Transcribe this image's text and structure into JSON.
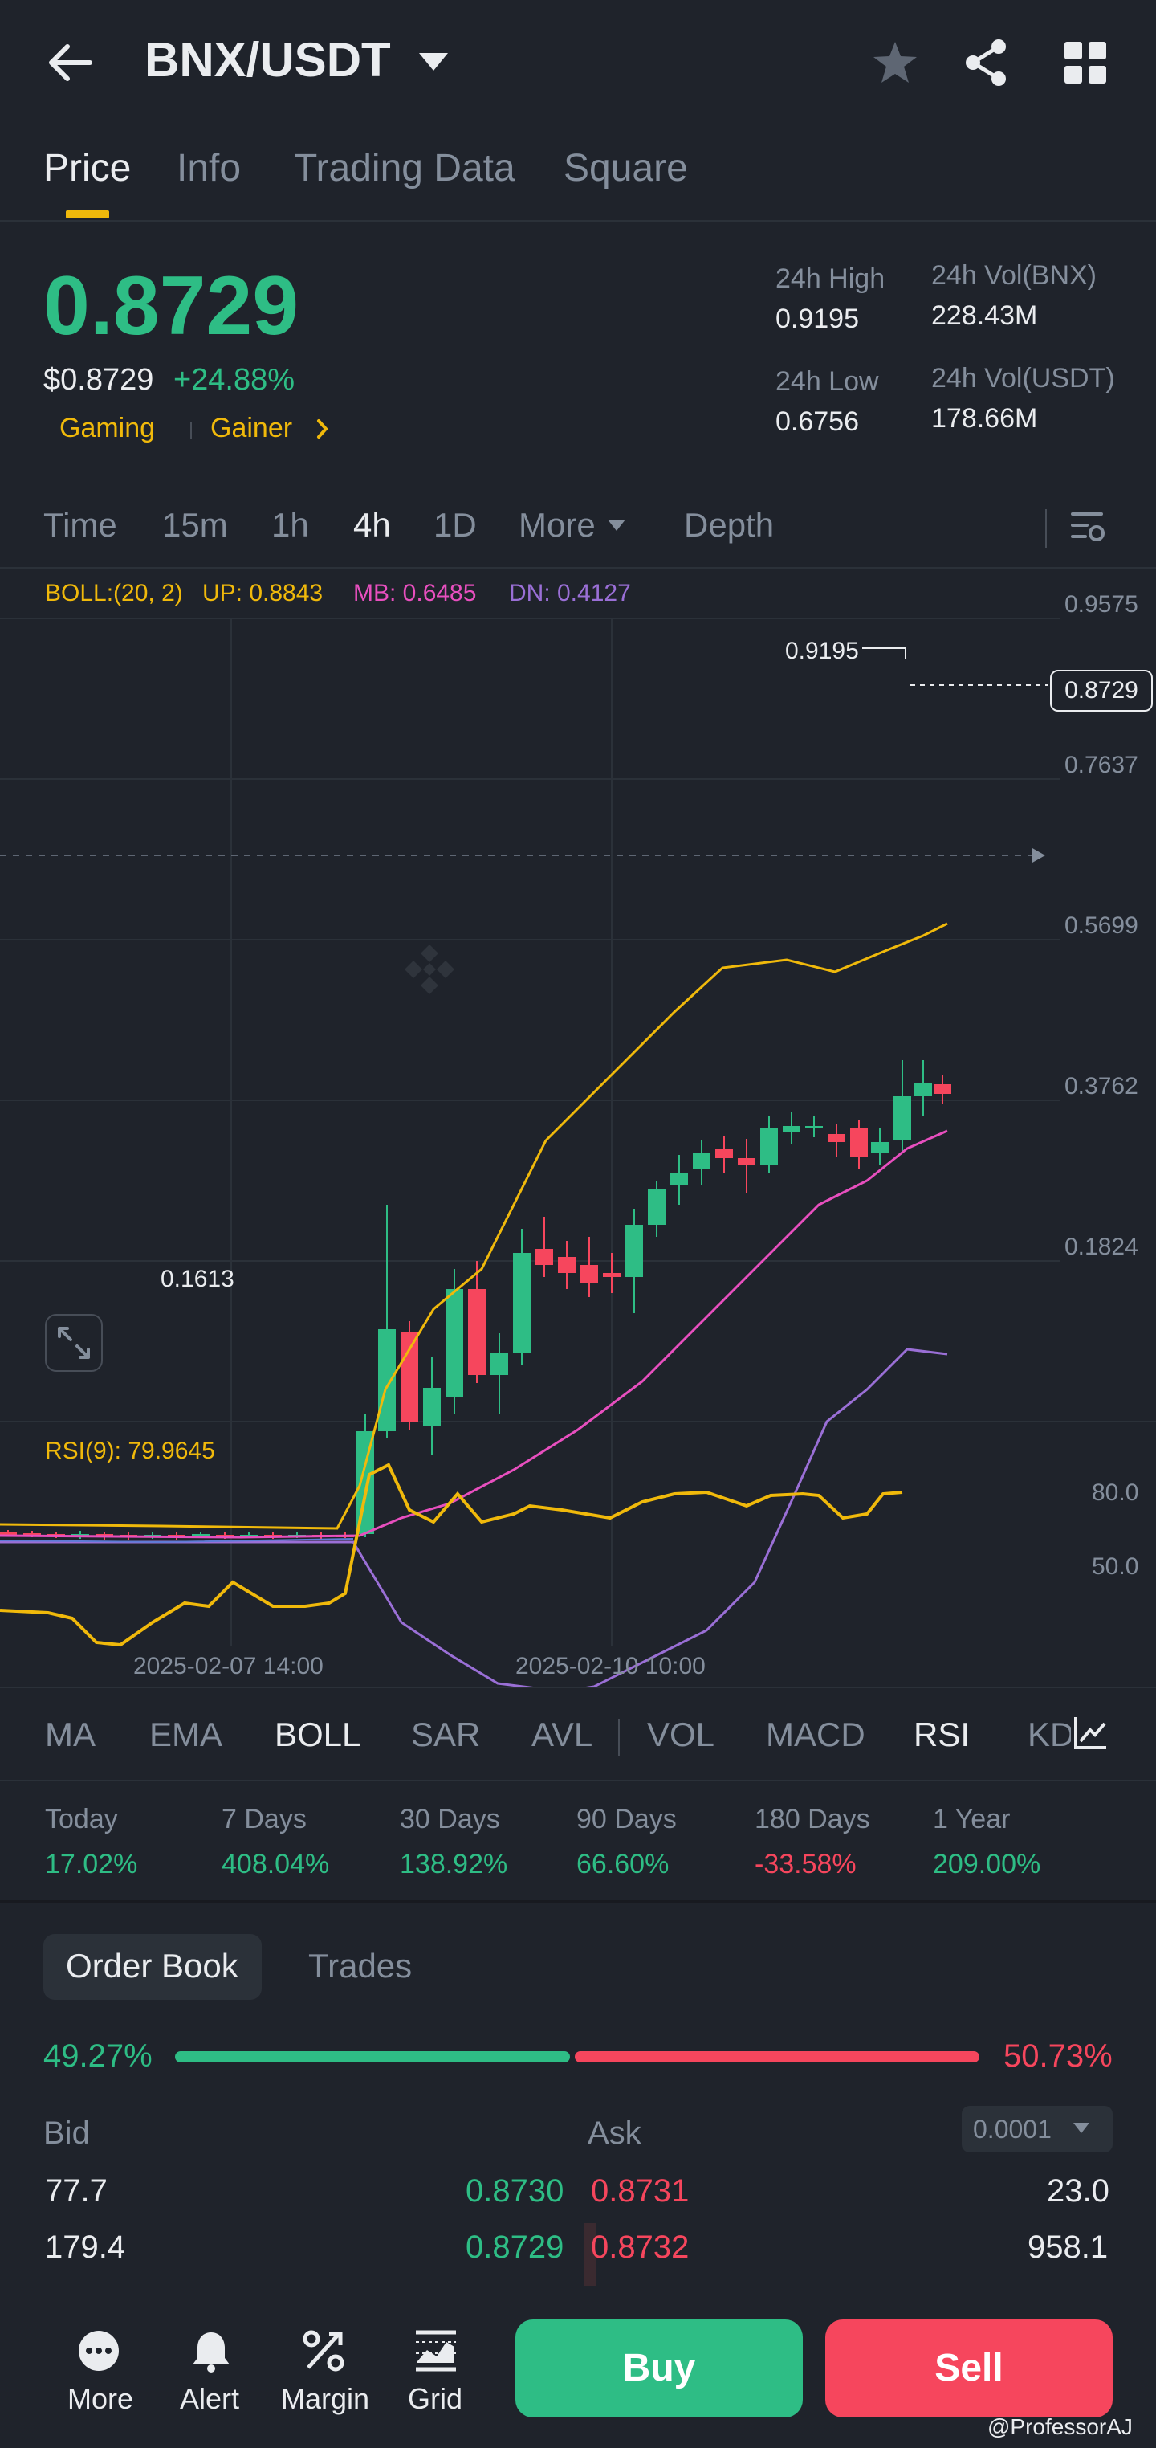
{
  "header": {
    "pair": "BNX/USDT",
    "back_icon": "arrow-left-icon",
    "star_icon": "star-icon",
    "share_icon": "share-icon",
    "grid_icon": "grid-icon"
  },
  "tabs": [
    "Price",
    "Info",
    "Trading Data",
    "Square"
  ],
  "price": {
    "last": "0.8729",
    "usd": "$0.8729",
    "change": "+24.88%",
    "tags": [
      "Gaming",
      "Gainer"
    ],
    "high_label": "24h High",
    "high": "0.9195",
    "low_label": "24h Low",
    "low": "0.6756",
    "vol_base_label": "24h Vol(BNX)",
    "vol_base": "228.43M",
    "vol_quote_label": "24h Vol(USDT)",
    "vol_quote": "178.66M"
  },
  "intervals": [
    "Time",
    "15m",
    "1h",
    "4h",
    "1D",
    "More",
    "Depth"
  ],
  "boll": {
    "name": "BOLL:(20, 2)",
    "up": "UP: 0.8843",
    "mb": "MB: 0.6485",
    "dn": "DN: 0.4127"
  },
  "axis_labels": [
    "0.9575",
    "0.7637",
    "0.5699",
    "0.3762",
    "0.1824"
  ],
  "rsi_axis": [
    "80.0",
    "50.0"
  ],
  "chart_marks": {
    "high_label": "0.9195",
    "low_label": "0.1613",
    "current_badge": "0.8729"
  },
  "rsi_legend": "RSI(9): 79.9645",
  "dates": [
    "2025-02-07 14:00",
    "2025-02-10 10:00"
  ],
  "indicators": [
    "MA",
    "EMA",
    "BOLL",
    "SAR",
    "AVL",
    "VOL",
    "MACD",
    "RSI",
    "KD"
  ],
  "performance": [
    {
      "label": "Today",
      "value": "17.02%"
    },
    {
      "label": "7 Days",
      "value": "408.04%"
    },
    {
      "label": "30 Days",
      "value": "138.92%"
    },
    {
      "label": "90 Days",
      "value": "66.60%"
    },
    {
      "label": "180 Days",
      "value": "-33.58%"
    },
    {
      "label": "1 Year",
      "value": "209.00%"
    }
  ],
  "orderbook": {
    "tabs": [
      "Order Book",
      "Trades"
    ],
    "bid_ratio": "49.27%",
    "ask_ratio": "50.73%",
    "bid_header": "Bid",
    "ask_header": "Ask",
    "precision": "0.0001",
    "rows": [
      {
        "bid_qty": "77.7",
        "bid_price": "0.8730",
        "ask_price": "0.8731",
        "ask_qty": "23.0"
      },
      {
        "bid_qty": "179.4",
        "bid_price": "0.8729",
        "ask_price": "0.8732",
        "ask_qty": "958.1"
      }
    ]
  },
  "bottom": {
    "items": [
      "More",
      "Alert",
      "Margin",
      "Grid"
    ],
    "buy": "Buy",
    "sell": "Sell"
  },
  "watermark": "@ProfessorAJ",
  "colors": {
    "up": "#2ebd85",
    "down": "#f6465d",
    "accent": "#f0b90b",
    "mb": "#e84fbf",
    "dn": "#9a6fd6"
  }
}
